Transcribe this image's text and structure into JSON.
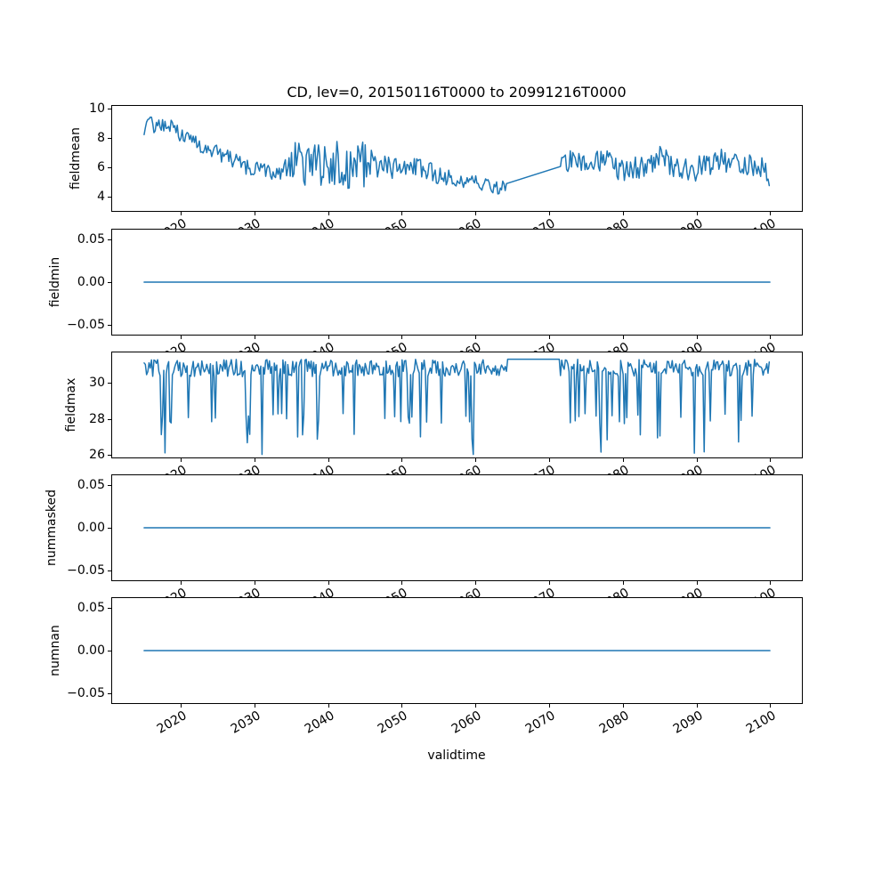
{
  "figure": {
    "title": "CD, lev=0, 20150116T0000 to 20991216T0000",
    "xlabel": "validtime",
    "line_color": "#1f77b4",
    "axis_color": "#000000",
    "background": "#ffffff"
  },
  "xaxis": {
    "lim": [
      2010.7,
      2104.3
    ],
    "ticks": [
      [
        2020,
        "2020"
      ],
      [
        2030,
        "2030"
      ],
      [
        2040,
        "2040"
      ],
      [
        2050,
        "2050"
      ],
      [
        2060,
        "2060"
      ],
      [
        2070,
        "2070"
      ],
      [
        2080,
        "2080"
      ],
      [
        2090,
        "2090"
      ],
      [
        2100,
        "2100"
      ]
    ],
    "label_rotation_deg": 30
  },
  "chart_data": [
    {
      "name": "fieldmean",
      "type": "line",
      "ylabel": "fieldmean",
      "ylim": [
        3.0,
        10.2
      ],
      "yticks": [
        [
          4,
          "4"
        ],
        [
          6,
          "6"
        ],
        [
          8,
          "8"
        ],
        [
          10,
          "10"
        ]
      ],
      "series": {
        "mode": "noisy",
        "seed": 20150116,
        "points_per_year": 6,
        "x_start": 2015.04,
        "x_end": 2099.96,
        "gap": [
          2064.3,
          2071.5
        ],
        "envelope": [
          [
            2015.0,
            8.5
          ],
          [
            2015.8,
            9.15
          ],
          [
            2016.4,
            8.7
          ],
          [
            2017.2,
            8.95
          ],
          [
            2018.6,
            8.85
          ],
          [
            2019.6,
            8.35
          ],
          [
            2021.0,
            8.0
          ],
          [
            2023.0,
            7.45
          ],
          [
            2025.0,
            7.0
          ],
          [
            2027.0,
            6.55
          ],
          [
            2029.0,
            5.95
          ],
          [
            2031.0,
            5.95
          ],
          [
            2033.0,
            5.6
          ],
          [
            2035.0,
            6.1
          ],
          [
            2037.0,
            6.35
          ],
          [
            2039.0,
            6.15
          ],
          [
            2041.0,
            6.35
          ],
          [
            2043.0,
            6.1
          ],
          [
            2045.0,
            6.25
          ],
          [
            2047.0,
            6.1
          ],
          [
            2049.0,
            5.9
          ],
          [
            2051.0,
            6.1
          ],
          [
            2053.0,
            5.75
          ],
          [
            2055.0,
            5.5
          ],
          [
            2057.0,
            5.25
          ],
          [
            2059.0,
            5.05
          ],
          [
            2061.0,
            4.85
          ],
          [
            2062.5,
            4.55
          ],
          [
            2064.3,
            4.7
          ],
          [
            2071.5,
            6.4
          ],
          [
            2073.0,
            6.35
          ],
          [
            2075.0,
            6.3
          ],
          [
            2077.0,
            6.6
          ],
          [
            2079.0,
            6.05
          ],
          [
            2081.0,
            5.75
          ],
          [
            2083.0,
            6.1
          ],
          [
            2085.0,
            6.6
          ],
          [
            2087.0,
            6.05
          ],
          [
            2089.0,
            5.65
          ],
          [
            2091.0,
            6.2
          ],
          [
            2093.0,
            6.45
          ],
          [
            2095.0,
            6.1
          ],
          [
            2097.0,
            6.35
          ],
          [
            2099.0,
            5.9
          ],
          [
            2099.96,
            5.3
          ]
        ],
        "noise_amp": [
          [
            2015.0,
            0.5
          ],
          [
            2033.0,
            0.55
          ],
          [
            2034.5,
            0.7
          ],
          [
            2035.5,
            1.6
          ],
          [
            2045.5,
            1.6
          ],
          [
            2046.5,
            0.8
          ],
          [
            2056.0,
            0.65
          ],
          [
            2060.0,
            0.5
          ],
          [
            2064.3,
            0.4
          ],
          [
            2071.5,
            0.85
          ],
          [
            2099.96,
            0.85
          ]
        ]
      }
    },
    {
      "name": "fieldmin",
      "type": "line",
      "ylabel": "fieldmin",
      "ylim": [
        -0.061,
        0.061
      ],
      "yticks": [
        [
          0.05,
          "0.05"
        ],
        [
          0,
          "0.00"
        ],
        [
          -0.05,
          "−0.05"
        ]
      ],
      "series": {
        "mode": "flat",
        "value": 0,
        "x_start": 2015.04,
        "x_end": 2099.96
      }
    },
    {
      "name": "fieldmax",
      "type": "line",
      "ylabel": "fieldmax",
      "ylim": [
        25.85,
        31.7
      ],
      "yticks": [
        [
          26,
          "26"
        ],
        [
          28,
          "28"
        ],
        [
          30,
          "30"
        ]
      ],
      "series": {
        "mode": "band_spikes",
        "seed": 20991216,
        "points_per_year": 6,
        "x_start": 2015.04,
        "x_end": 2099.96,
        "gap": [
          2064.3,
          2071.5
        ],
        "gap_value": 31.32,
        "band": [
          30.35,
          31.32
        ],
        "spikes": [
          {
            "level": 28.0,
            "prob": 0.105,
            "jitter": 0.3
          },
          {
            "level": 26.9,
            "prob": 0.028,
            "jitter": 0.25
          },
          {
            "level": 26.1,
            "prob": 0.013,
            "jitter": 0.1
          }
        ]
      }
    },
    {
      "name": "nummasked",
      "type": "line",
      "ylabel": "nummasked",
      "ylim": [
        -0.061,
        0.061
      ],
      "yticks": [
        [
          0.05,
          "0.05"
        ],
        [
          0,
          "0.00"
        ],
        [
          -0.05,
          "−0.05"
        ]
      ],
      "series": {
        "mode": "flat",
        "value": 0,
        "x_start": 2015.04,
        "x_end": 2099.96
      }
    },
    {
      "name": "numnan",
      "type": "line",
      "ylabel": "numnan",
      "ylim": [
        -0.061,
        0.061
      ],
      "yticks": [
        [
          0.05,
          "0.05"
        ],
        [
          0,
          "0.00"
        ],
        [
          -0.05,
          "−0.05"
        ]
      ],
      "series": {
        "mode": "flat",
        "value": 0,
        "x_start": 2015.04,
        "x_end": 2099.96
      }
    }
  ]
}
